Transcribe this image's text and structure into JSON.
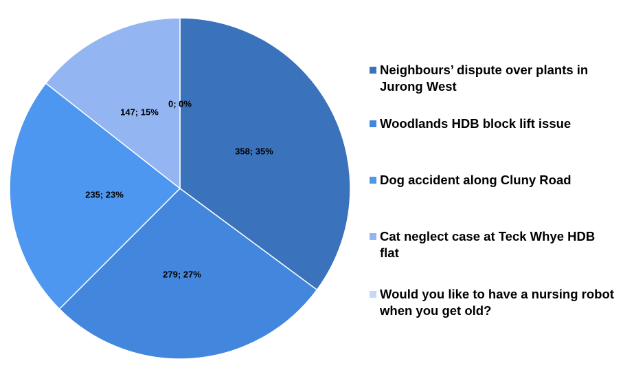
{
  "chart_data": {
    "type": "pie",
    "categories": [
      "Neighbours’ dispute over plants in Jurong West",
      "Woodlands HDB block lift issue",
      "Dog accident along Cluny Road",
      "Cat neglect case at Teck Whye HDB flat",
      "Would you like to have a nursing robot when you get old?"
    ],
    "values": [
      358,
      279,
      235,
      147,
      0
    ],
    "percentages": [
      "35%",
      "27%",
      "23%",
      "15%",
      "0%"
    ],
    "labels": [
      "358; 35%",
      "279; 27%",
      "235; 23%",
      "147; 15%",
      "0; 0%"
    ],
    "colors": [
      "#3a72bb",
      "#4286dd",
      "#4d97f0",
      "#93b6f2",
      "#c5d9f7"
    ],
    "legend_position": "right",
    "start_angle": "12 o'clock, clockwise"
  }
}
